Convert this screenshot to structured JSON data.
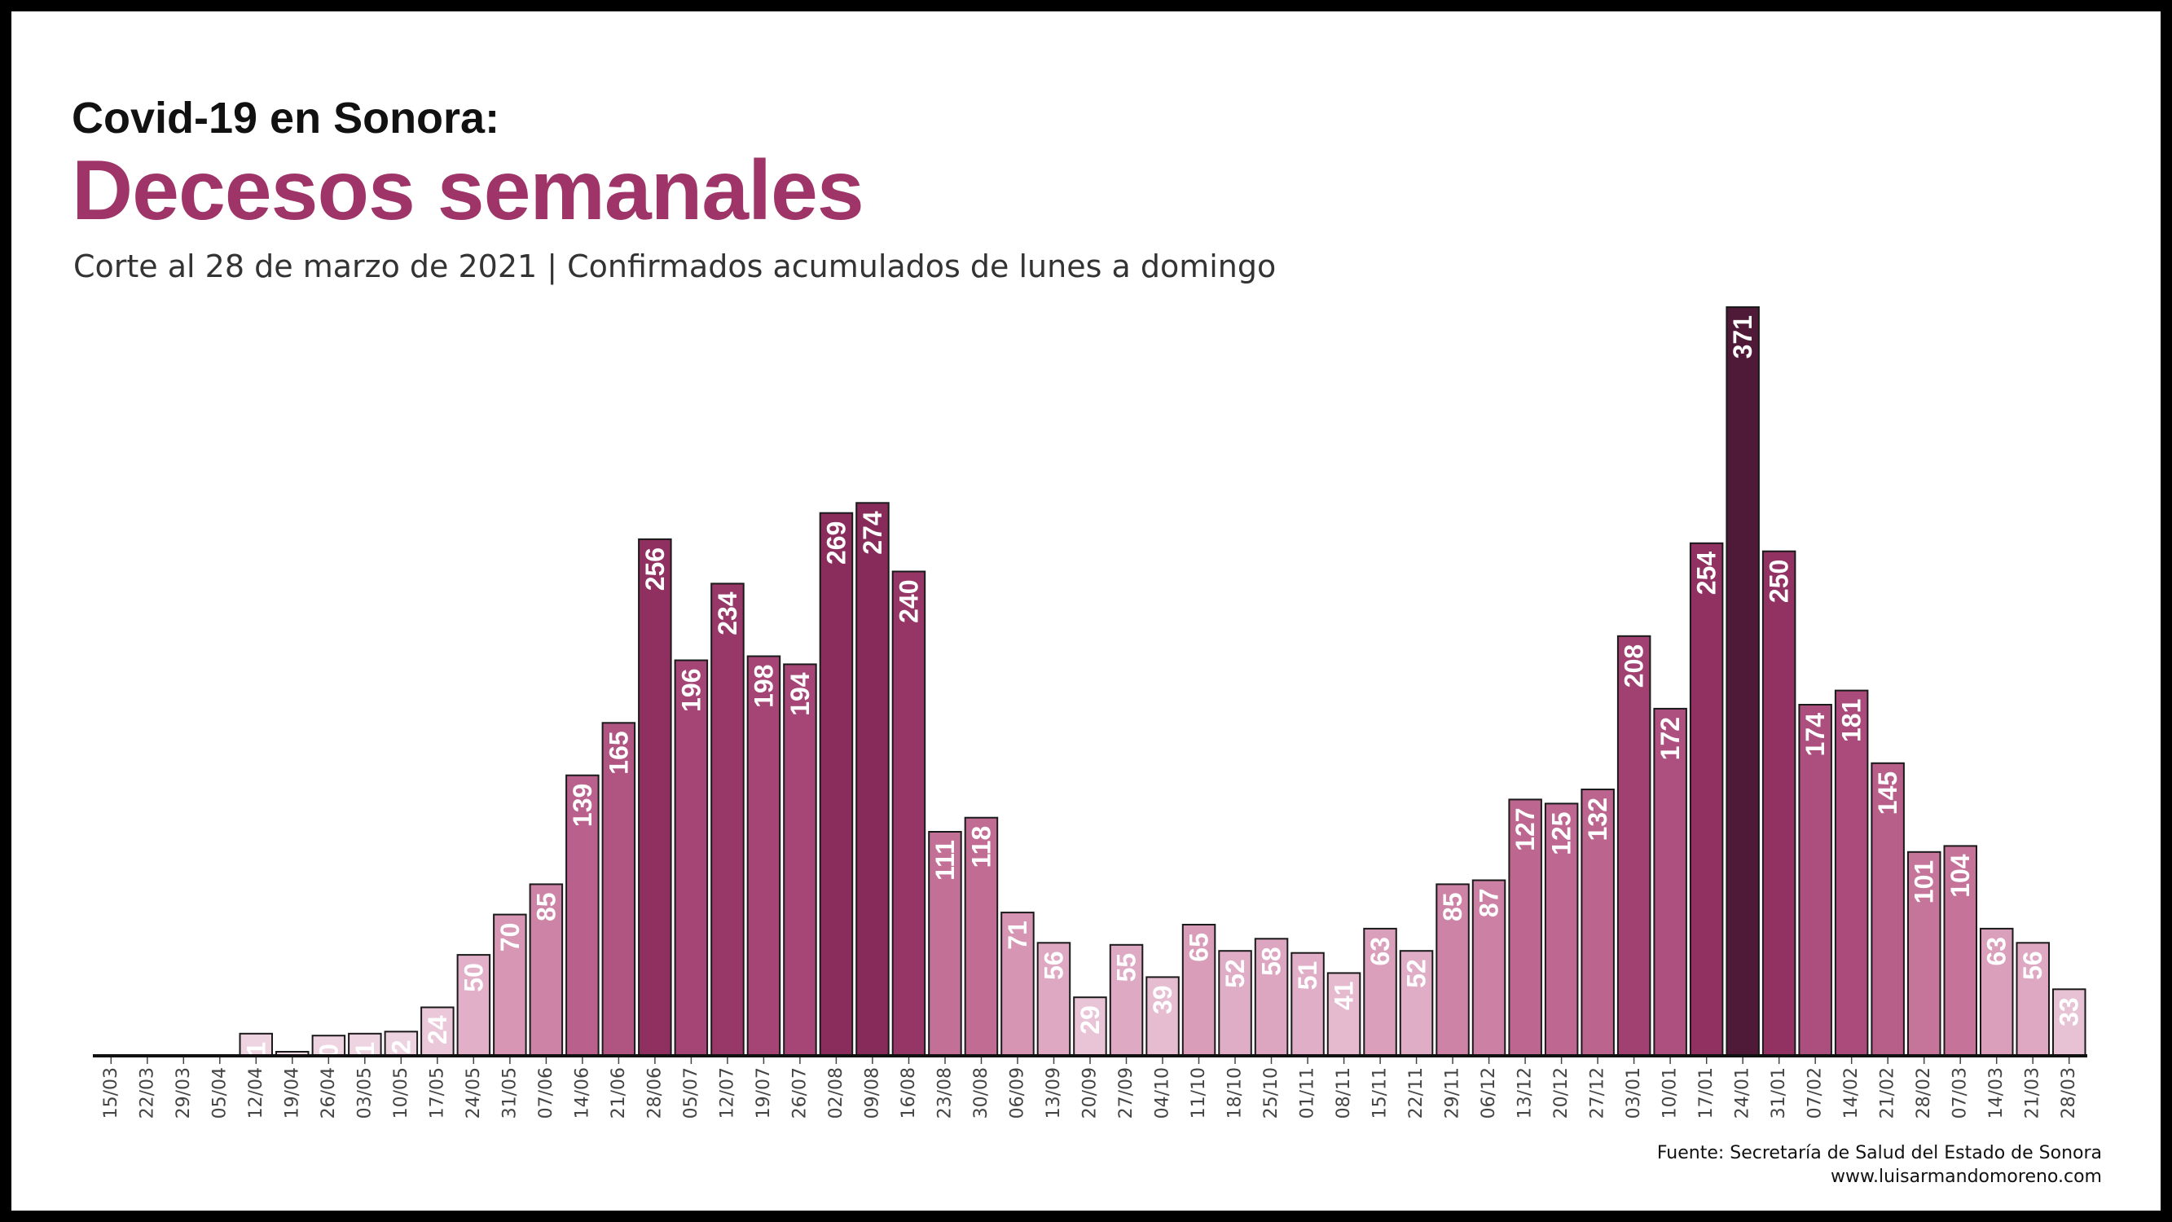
{
  "header": {
    "title_small": "Covid-19 en Sonora:",
    "title_big": "Decesos semanales",
    "subtitle": "Corte al 28 de marzo de 2021 | Confirmados acumulados de lunes a domingo"
  },
  "footer": {
    "source": "Fuente: Secretaría de Salud del Estado de Sonora",
    "website": "www.luisarmandomoreno.com"
  },
  "colors": {
    "accent": "#9e3468",
    "low": "#f1dce7",
    "high": "#4f1a37"
  },
  "chart_data": {
    "type": "bar",
    "title": "Decesos semanales",
    "xlabel": "",
    "ylabel": "",
    "ylim": [
      0,
      371
    ],
    "grid": false,
    "legend": "none",
    "categories": [
      "15/03",
      "22/03",
      "29/03",
      "05/04",
      "12/04",
      "19/04",
      "26/04",
      "03/05",
      "10/05",
      "17/05",
      "24/05",
      "31/05",
      "07/06",
      "14/06",
      "21/06",
      "28/06",
      "05/07",
      "12/07",
      "19/07",
      "26/07",
      "02/08",
      "09/08",
      "16/08",
      "23/08",
      "30/08",
      "06/09",
      "13/09",
      "20/09",
      "27/09",
      "04/10",
      "11/10",
      "18/10",
      "25/10",
      "01/11",
      "08/11",
      "15/11",
      "22/11",
      "29/11",
      "06/12",
      "13/12",
      "20/12",
      "27/12",
      "03/01",
      "10/01",
      "17/01",
      "24/01",
      "31/01",
      "07/02",
      "14/02",
      "21/02",
      "28/02",
      "07/03",
      "14/03",
      "21/03",
      "28/03"
    ],
    "values": [
      0,
      0,
      0,
      0,
      11,
      2,
      10,
      11,
      12,
      24,
      50,
      70,
      85,
      139,
      165,
      256,
      196,
      234,
      198,
      194,
      269,
      274,
      240,
      111,
      118,
      71,
      56,
      29,
      55,
      39,
      65,
      52,
      58,
      51,
      41,
      63,
      52,
      85,
      87,
      127,
      125,
      132,
      208,
      172,
      254,
      371,
      250,
      174,
      181,
      145,
      101,
      104,
      63,
      56,
      33
    ]
  }
}
